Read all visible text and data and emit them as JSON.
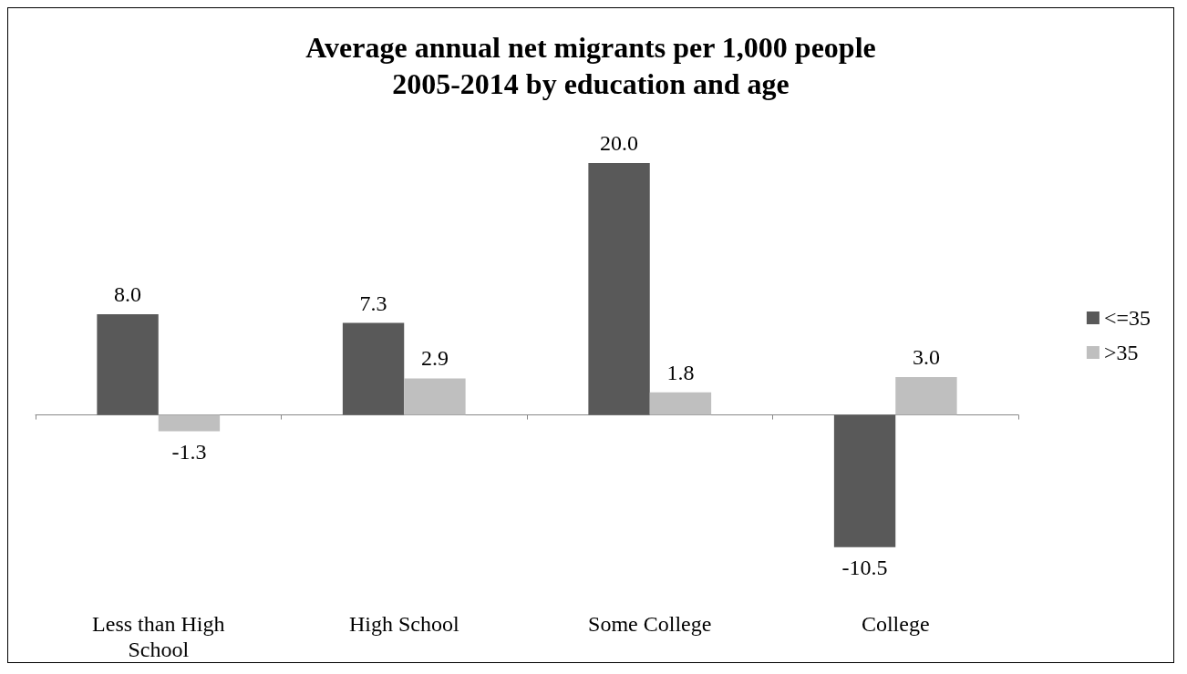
{
  "chart_data": {
    "type": "bar",
    "title": "Average annual net migrants per 1,000 people\n2005-2014 by education and age",
    "categories": [
      "Less than High\nSchool",
      "High School",
      "Some College",
      "College"
    ],
    "series": [
      {
        "name": "<=35",
        "color": "#595959",
        "values": [
          8,
          7.3,
          20,
          -10.5
        ],
        "value_labels": [
          "8.0",
          "7.3",
          "20.0",
          "-10.5"
        ]
      },
      {
        "name": ">35",
        "color": "#bfbfbf",
        "values": [
          -1.3,
          2.9,
          1.8,
          3
        ],
        "value_labels": [
          "-1.3",
          "2.9",
          "1.8",
          "3.0"
        ]
      }
    ],
    "grid": false,
    "legend": "right"
  }
}
